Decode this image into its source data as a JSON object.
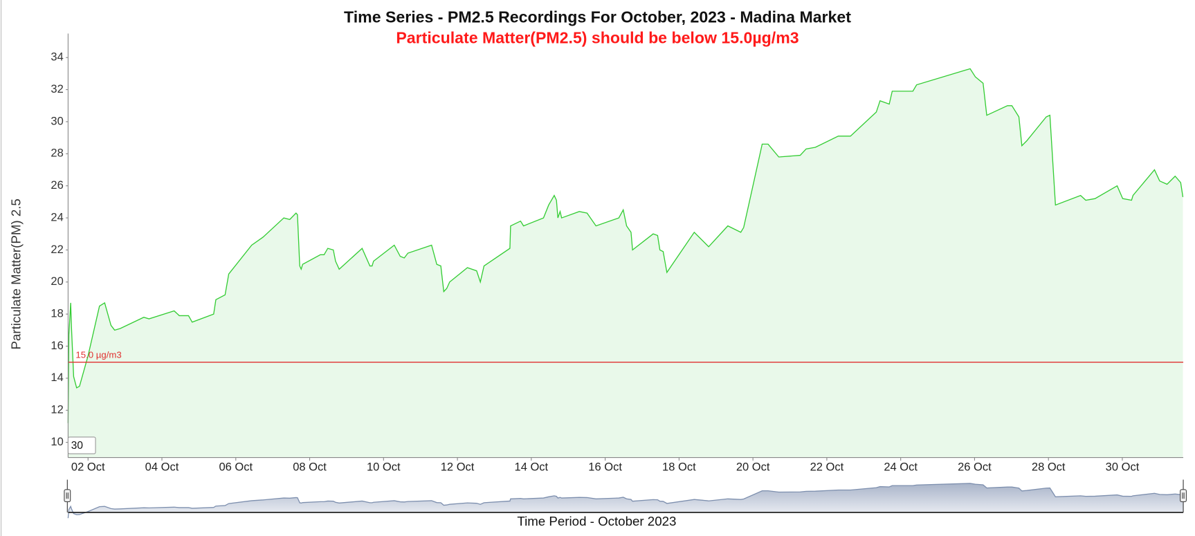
{
  "chart_data": {
    "type": "area",
    "title": "Time Series - PM2.5 Recordings For October, 2023 - Madina Market",
    "subtitle": "Particulate Matter(PM2.5) should be below 15.0µg/m3",
    "subtitle_color": "#ff1a1a",
    "y_label": "Particulate Matter(PM) 2.5",
    "x_label": "Time Period - October 2023",
    "range_label": "30",
    "color": "#33cc33",
    "fill_color": "#e9f9ea",
    "grid": false,
    "threshold": {
      "value": 15,
      "label": "15.0 µg/m3",
      "color": "#e03030"
    },
    "xlim": [
      1.46,
      31.65
    ],
    "ylim": [
      9.05,
      35.5
    ],
    "xticks": [
      {
        "value": 2,
        "label": "02 Oct"
      },
      {
        "value": 4,
        "label": "04 Oct"
      },
      {
        "value": 6,
        "label": "06 Oct"
      },
      {
        "value": 8,
        "label": "08 Oct"
      },
      {
        "value": 10,
        "label": "10 Oct"
      },
      {
        "value": 12,
        "label": "12 Oct"
      },
      {
        "value": 14,
        "label": "14 Oct"
      },
      {
        "value": 16,
        "label": "16 Oct"
      },
      {
        "value": 18,
        "label": "18 Oct"
      },
      {
        "value": 20,
        "label": "20 Oct"
      },
      {
        "value": 22,
        "label": "22 Oct"
      },
      {
        "value": 24,
        "label": "24 Oct"
      },
      {
        "value": 26,
        "label": "26 Oct"
      },
      {
        "value": 28,
        "label": "28 Oct"
      },
      {
        "value": 30,
        "label": "30 Oct"
      }
    ],
    "yticks": [
      10,
      12,
      14,
      16,
      18,
      20,
      22,
      24,
      26,
      28,
      30,
      32,
      34
    ],
    "x": [
      1.46,
      1.48,
      1.53,
      1.55,
      1.61,
      1.69,
      1.77,
      2.0,
      2.31,
      2.45,
      2.62,
      2.72,
      2.87,
      3.51,
      3.65,
      4.33,
      4.47,
      4.72,
      4.82,
      5.4,
      5.46,
      5.71,
      5.81,
      6.43,
      6.74,
      7.3,
      7.46,
      7.63,
      7.67,
      7.73,
      7.77,
      7.81,
      8.29,
      8.39,
      8.49,
      8.64,
      8.7,
      8.8,
      9.42,
      9.63,
      9.69,
      9.73,
      10.29,
      10.45,
      10.56,
      10.66,
      11.3,
      11.44,
      11.55,
      11.63,
      11.71,
      11.79,
      12.27,
      12.52,
      12.62,
      12.72,
      13.42,
      13.44,
      13.71,
      13.79,
      14.33,
      14.47,
      14.62,
      14.68,
      14.72,
      14.78,
      14.82,
      15.3,
      15.51,
      15.75,
      16.37,
      16.49,
      16.58,
      16.7,
      16.74,
      17.3,
      17.42,
      17.48,
      17.57,
      17.67,
      18.41,
      18.76,
      18.8,
      19.32,
      19.67,
      19.75,
      20.25,
      20.41,
      20.7,
      21.28,
      21.44,
      21.69,
      22.31,
      22.64,
      23.34,
      23.44,
      23.69,
      23.77,
      24.33,
      24.43,
      25.88,
      26.02,
      26.23,
      26.33,
      26.89,
      27.01,
      27.2,
      27.28,
      27.41,
      27.94,
      28.04,
      28.19,
      28.87,
      29.01,
      29.26,
      29.86,
      30.01,
      30.25,
      30.29,
      30.87,
      31.01,
      31.21,
      31.43,
      31.58,
      31.64
    ],
    "values": [
      11.2,
      16.7,
      18.7,
      17.2,
      14.1,
      13.4,
      13.5,
      15.4,
      18.5,
      18.7,
      17.3,
      17.0,
      17.1,
      17.8,
      17.7,
      18.2,
      17.9,
      17.9,
      17.5,
      18.0,
      18.9,
      19.2,
      20.5,
      22.3,
      22.8,
      24.0,
      23.9,
      24.3,
      24.2,
      21.0,
      20.8,
      21.1,
      21.7,
      21.7,
      22.1,
      22.0,
      21.3,
      20.8,
      22.1,
      21.0,
      21.0,
      21.3,
      22.3,
      21.6,
      21.5,
      21.8,
      22.3,
      21.1,
      21.0,
      19.4,
      19.6,
      20.0,
      20.9,
      20.7,
      20.0,
      21.0,
      22.1,
      23.5,
      23.8,
      23.5,
      24.0,
      24.8,
      25.4,
      25.1,
      24.0,
      24.4,
      24.0,
      24.4,
      24.3,
      23.5,
      24.0,
      24.5,
      23.5,
      23.1,
      22.0,
      23.0,
      22.9,
      22.0,
      21.9,
      20.6,
      23.1,
      22.3,
      22.2,
      23.5,
      23.1,
      23.4,
      28.6,
      28.6,
      27.8,
      27.9,
      28.3,
      28.4,
      29.1,
      29.1,
      30.6,
      31.3,
      31.1,
      31.9,
      31.9,
      32.3,
      33.3,
      32.8,
      32.4,
      30.4,
      31.0,
      31.0,
      30.3,
      28.5,
      28.8,
      30.3,
      30.4,
      24.8,
      25.4,
      25.1,
      25.2,
      26.0,
      25.2,
      25.1,
      25.4,
      27.0,
      26.3,
      26.1,
      26.6,
      26.2,
      25.3
    ]
  }
}
